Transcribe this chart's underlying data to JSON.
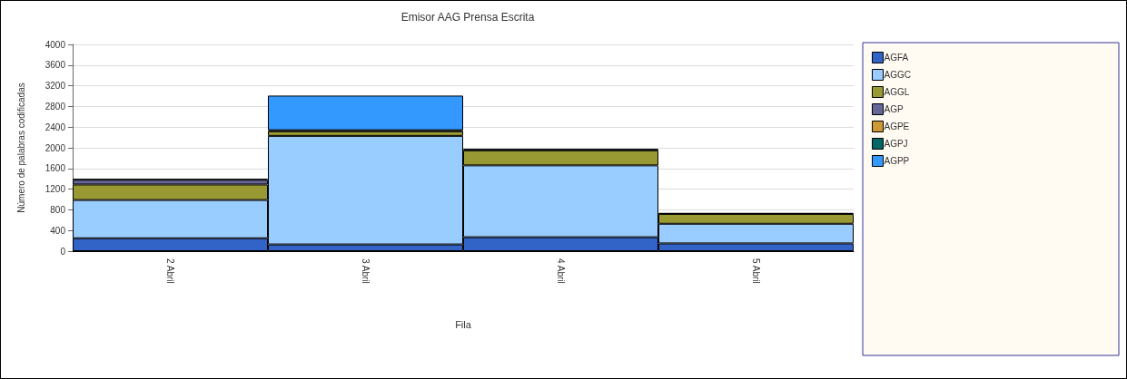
{
  "chart_data": {
    "type": "bar",
    "title": "Emisor AAG Prensa Escrita",
    "xlabel": "Fila",
    "ylabel": "Número de palabras codificadas",
    "categories": [
      "2 Abril",
      "3 Abril",
      "4 Abril",
      "5 Abril"
    ],
    "stacked": true,
    "ylim": [
      0,
      4000
    ],
    "yticks": [
      0,
      400,
      800,
      1200,
      1600,
      2000,
      2400,
      2800,
      3200,
      3600,
      4000
    ],
    "grid": "y",
    "legend": "right",
    "series": [
      {
        "name": "AGFA",
        "color": "#3264c8",
        "values": [
          250,
          130,
          270,
          150
        ]
      },
      {
        "name": "AGGC",
        "color": "#99ccff",
        "values": [
          740,
          2100,
          1390,
          380
        ]
      },
      {
        "name": "AGGL",
        "color": "#999933",
        "values": [
          300,
          90,
          290,
          190
        ]
      },
      {
        "name": "AGP",
        "color": "#666699",
        "values": [
          90,
          0,
          0,
          0
        ]
      },
      {
        "name": "AGPE",
        "color": "#cc9933",
        "values": [
          0,
          0,
          0,
          0
        ]
      },
      {
        "name": "AGPJ",
        "color": "#006666",
        "values": [
          20,
          20,
          30,
          20
        ]
      },
      {
        "name": "AGPP",
        "color": "#3399ff",
        "values": [
          0,
          670,
          0,
          0
        ]
      }
    ]
  }
}
